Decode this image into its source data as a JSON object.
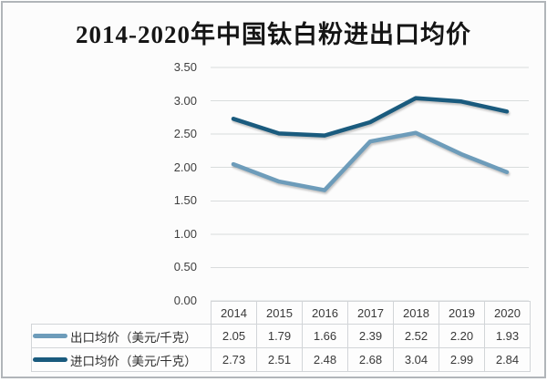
{
  "frame": {
    "background": "#fcfcfc",
    "border_color": "#b1b5b9"
  },
  "chart_data": {
    "type": "line",
    "title": "2014-2020年中国钛白粉进出口均价",
    "x": [
      "2014",
      "2015",
      "2016",
      "2017",
      "2018",
      "2019",
      "2020"
    ],
    "series": [
      {
        "name": "出口均价（美元/千克）",
        "values": [
          2.05,
          1.79,
          1.66,
          2.39,
          2.52,
          2.2,
          1.93
        ],
        "color": "#6d9cba"
      },
      {
        "name": "进口均价（美元/千克）",
        "values": [
          2.73,
          2.51,
          2.48,
          2.68,
          3.04,
          2.99,
          2.84
        ],
        "color": "#1a5b7e"
      }
    ],
    "xlabel": "",
    "ylabel": "",
    "ylim": [
      0,
      3.5
    ],
    "ytick_step": 0.5,
    "ytick_labels": [
      "0.00",
      "0.50",
      "1.00",
      "1.50",
      "2.00",
      "2.50",
      "3.00",
      "3.50"
    ],
    "grid": true,
    "gridline_color": "#d9dcdd",
    "legend_position": "bottom-table-left"
  }
}
